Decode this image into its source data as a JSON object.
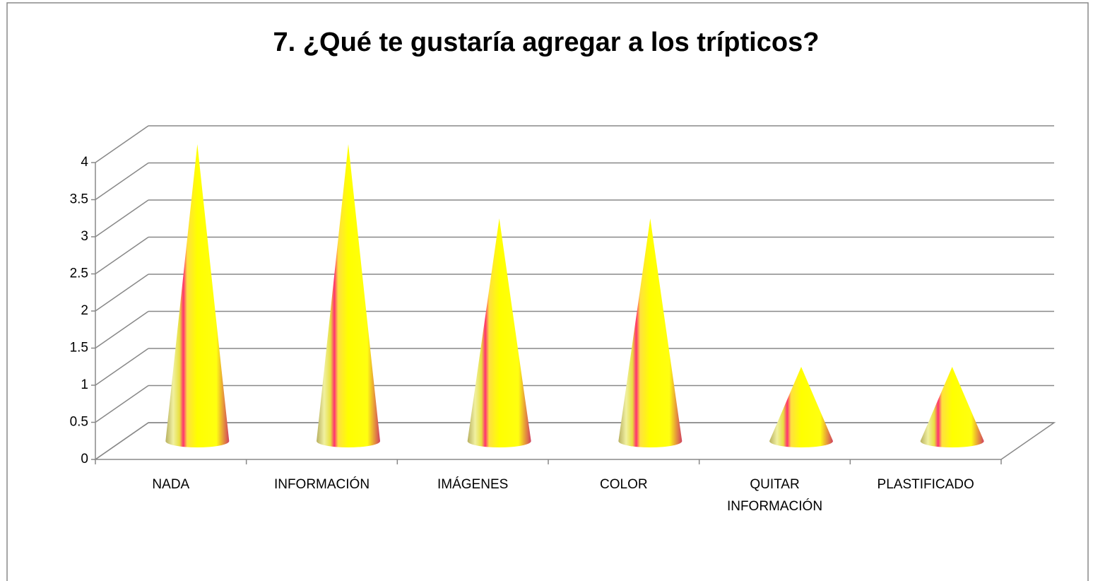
{
  "chart_data": {
    "type": "cone",
    "title": "7. ¿Qué te gustaría agregar a los trípticos?",
    "categories": [
      "NADA",
      "INFORMACIÓN",
      "IMÁGENES",
      "COLOR",
      "QUITAR INFORMACIÓN",
      "PLASTIFICADO"
    ],
    "values": [
      4,
      4,
      3,
      3,
      1,
      1
    ],
    "ylim": [
      0,
      4
    ],
    "yticks": [
      0,
      0.5,
      1,
      1.5,
      2,
      2.5,
      3,
      3.5,
      4
    ],
    "grid": true
  }
}
